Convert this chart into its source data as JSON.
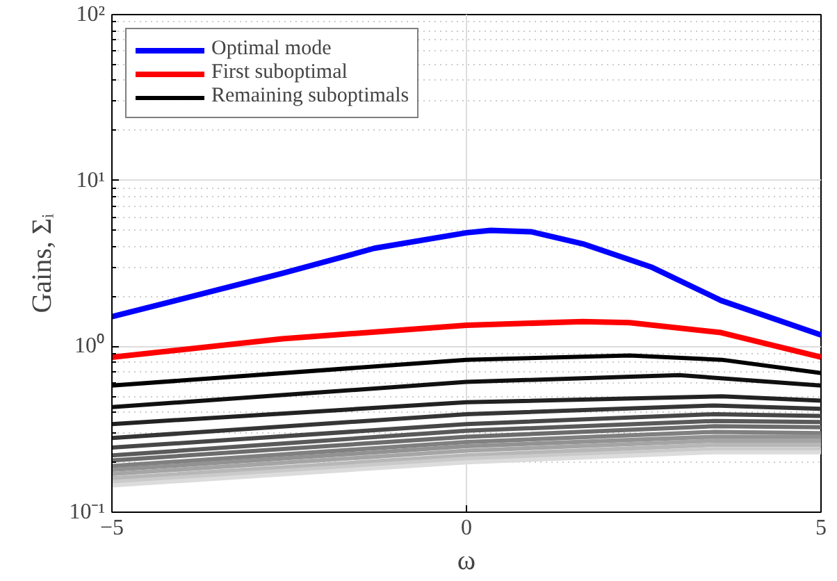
{
  "chart_data": {
    "type": "line",
    "xlabel": "ω",
    "ylabel": "Gains, Σᵢ",
    "log": "y",
    "grid": true,
    "legend": "top left",
    "line_style": "solid",
    "marker": "none",
    "xlim": [
      -5,
      5
    ],
    "xticks": [
      {
        "value": -5,
        "label": "−5"
      },
      0,
      5
    ],
    "ylim": [
      0.1,
      100
    ],
    "yticks": [
      {
        "value": 0.1,
        "label": "10⁻¹"
      },
      {
        "value": 1,
        "label": "10⁰"
      },
      {
        "value": 10,
        "label": "10¹"
      },
      {
        "value": 100,
        "label": "10²"
      }
    ],
    "series": [
      {
        "name": "Optimal mode",
        "color": "#0000ff",
        "x": [
          -5,
          -2.6,
          -1.3,
          0,
          0.34,
          0.92,
          1.64,
          2.62,
          3.59,
          5
        ],
        "values": [
          1.51,
          2.75,
          3.9,
          4.84,
          5.0,
          4.9,
          4.15,
          2.99,
          1.89,
          1.17
        ]
      },
      {
        "name": "First suboptimal",
        "color": "#ff0000",
        "x": [
          -5,
          -2.6,
          0,
          1.64,
          2.3,
          3.59,
          5
        ],
        "values": [
          0.86,
          1.11,
          1.34,
          1.41,
          1.39,
          1.21,
          0.86
        ]
      },
      {
        "name": "Remaining suboptimals",
        "color": "#000000",
        "x": [
          -5,
          0,
          2.3,
          3.6,
          5
        ],
        "values": [
          0.58,
          0.83,
          0.88,
          0.83,
          0.69
        ]
      },
      {
        "color": "#101010",
        "x": [
          -5,
          0,
          3,
          5
        ],
        "values": [
          0.43,
          0.61,
          0.67,
          0.58
        ]
      },
      {
        "color": "#222222",
        "x": [
          -5,
          0,
          3.6,
          5
        ],
        "values": [
          0.34,
          0.46,
          0.5,
          0.47
        ]
      },
      {
        "color": "#353535",
        "x": [
          -5,
          0,
          3.5,
          5
        ],
        "values": [
          0.28,
          0.39,
          0.44,
          0.42
        ]
      },
      {
        "color": "#474747",
        "x": [
          -5,
          0,
          3.5,
          5
        ],
        "values": [
          0.245,
          0.34,
          0.39,
          0.38
        ]
      },
      {
        "color": "#5a5a5a",
        "x": [
          -5,
          0,
          3.5,
          5
        ],
        "values": [
          0.22,
          0.31,
          0.355,
          0.35
        ]
      },
      {
        "color": "#6c6c6c",
        "x": [
          -5,
          0,
          3.5,
          5
        ],
        "values": [
          0.205,
          0.285,
          0.33,
          0.325
        ]
      },
      {
        "color": "#808080",
        "x": [
          -5,
          0,
          3.5,
          5
        ],
        "values": [
          0.19,
          0.265,
          0.305,
          0.3
        ]
      },
      {
        "color": "#929292",
        "x": [
          -5,
          0,
          3.5,
          5
        ],
        "values": [
          0.18,
          0.25,
          0.285,
          0.285
        ]
      },
      {
        "color": "#a5a5a5",
        "x": [
          -5,
          0,
          3.5,
          5
        ],
        "values": [
          0.17,
          0.235,
          0.27,
          0.27
        ]
      },
      {
        "color": "#b7b7b7",
        "x": [
          -5,
          0,
          3.5,
          5
        ],
        "values": [
          0.16,
          0.22,
          0.255,
          0.255
        ]
      },
      {
        "color": "#cacaca",
        "x": [
          -5,
          0,
          3.5,
          5
        ],
        "values": [
          0.152,
          0.21,
          0.24,
          0.24
        ]
      },
      {
        "color": "#dcdcdc",
        "x": [
          -5,
          0,
          3.5,
          5
        ],
        "values": [
          0.145,
          0.2,
          0.23,
          0.23
        ]
      }
    ]
  }
}
